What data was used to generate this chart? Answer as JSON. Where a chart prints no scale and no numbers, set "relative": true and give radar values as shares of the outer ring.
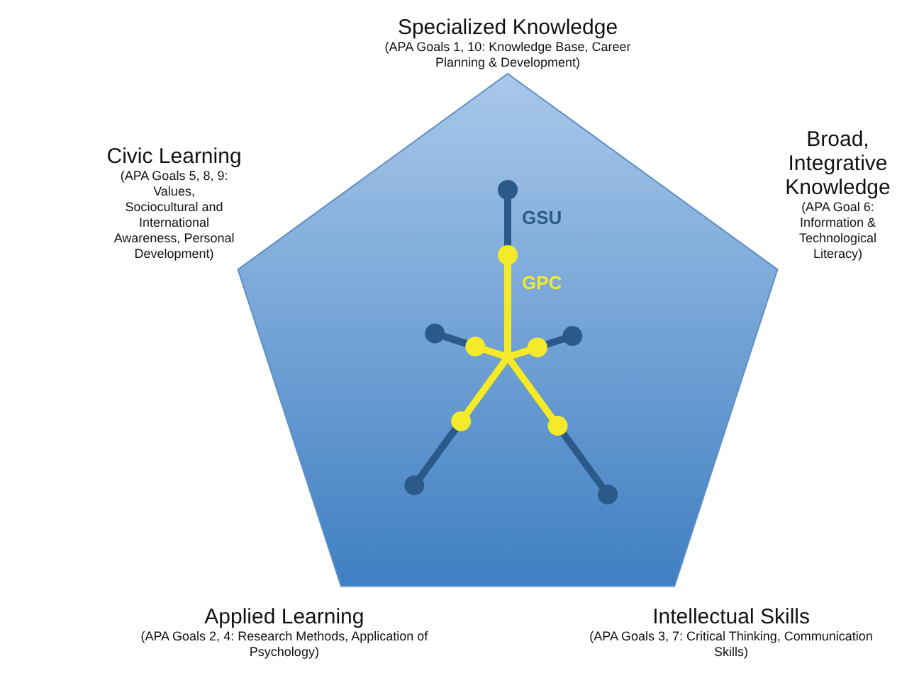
{
  "chart_data": {
    "type": "radar",
    "relative": true,
    "marker": "circle",
    "categories": [
      "Specialized Knowledge",
      "Broad, Integrative Knowledge",
      "Intellectual Skills",
      "Applied Learning",
      "Civic Learning"
    ],
    "annotations": [
      "(APA Goals 1, 10: Knowledge Base, Career Planning & Development)",
      "(APA Goal 6: Information & Technological Literacy)",
      "(APA Goals 3, 7: Critical Thinking, Communication Skills)",
      "(APA Goals 2, 4: Research Methods, Application of Psychology)",
      "(APA Goals 5, 8, 9: Values, Sociocultural and International Awareness, Personal Development)"
    ],
    "series": [
      {
        "name": "GSU",
        "color": "#2b5a8a",
        "values": [
          0.59,
          0.24,
          0.6,
          0.56,
          0.27
        ]
      },
      {
        "name": "GPC",
        "color": "#f4ea2a",
        "values": [
          0.36,
          0.11,
          0.3,
          0.28,
          0.12
        ]
      }
    ]
  }
}
